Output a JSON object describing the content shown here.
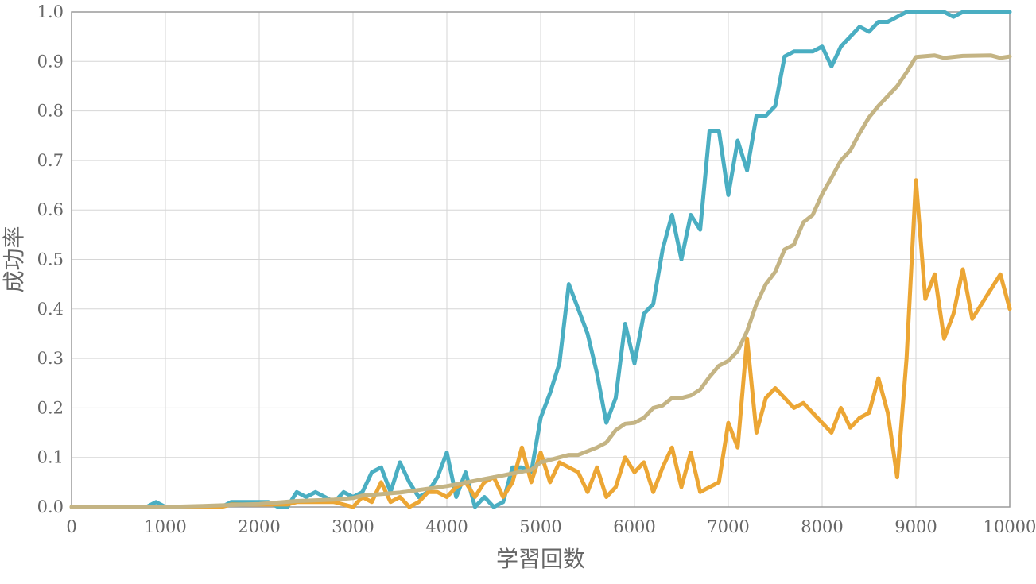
{
  "chart_data": {
    "type": "line",
    "title": "",
    "xlabel": "学習回数",
    "ylabel": "成功率",
    "xlim": [
      0,
      10000
    ],
    "ylim": [
      0,
      1.0
    ],
    "x_ticks": [
      "0",
      "1000",
      "2000",
      "3000",
      "4000",
      "5000",
      "6000",
      "7000",
      "8000",
      "9000",
      "10000"
    ],
    "y_ticks": [
      "0.0",
      "0.1",
      "0.2",
      "0.3",
      "0.4",
      "0.5",
      "0.6",
      "0.7",
      "0.8",
      "0.9",
      "1.0"
    ],
    "grid": true,
    "legend": "none",
    "series": [
      {
        "color": "#4aaec2",
        "points": [
          [
            0,
            0
          ],
          [
            800,
            0
          ],
          [
            900,
            0.01
          ],
          [
            1000,
            0
          ],
          [
            1600,
            0
          ],
          [
            1700,
            0.01
          ],
          [
            2100,
            0.01
          ],
          [
            2200,
            0
          ],
          [
            2300,
            0
          ],
          [
            2400,
            0.03
          ],
          [
            2500,
            0.02
          ],
          [
            2600,
            0.03
          ],
          [
            2700,
            0.02
          ],
          [
            2800,
            0.01
          ],
          [
            2900,
            0.03
          ],
          [
            3000,
            0.02
          ],
          [
            3100,
            0.03
          ],
          [
            3200,
            0.07
          ],
          [
            3300,
            0.08
          ],
          [
            3400,
            0.03
          ],
          [
            3500,
            0.09
          ],
          [
            3600,
            0.05
          ],
          [
            3700,
            0.02
          ],
          [
            3800,
            0.03
          ],
          [
            3900,
            0.06
          ],
          [
            4000,
            0.11
          ],
          [
            4100,
            0.02
          ],
          [
            4200,
            0.07
          ],
          [
            4300,
            0
          ],
          [
            4400,
            0.02
          ],
          [
            4500,
            0
          ],
          [
            4600,
            0.01
          ],
          [
            4700,
            0.08
          ],
          [
            4800,
            0.08
          ],
          [
            4900,
            0.07
          ],
          [
            5000,
            0.18
          ],
          [
            5100,
            0.23
          ],
          [
            5200,
            0.29
          ],
          [
            5300,
            0.45
          ],
          [
            5400,
            0.4
          ],
          [
            5500,
            0.35
          ],
          [
            5600,
            0.27
          ],
          [
            5700,
            0.17
          ],
          [
            5800,
            0.22
          ],
          [
            5900,
            0.37
          ],
          [
            6000,
            0.29
          ],
          [
            6100,
            0.39
          ],
          [
            6200,
            0.41
          ],
          [
            6300,
            0.52
          ],
          [
            6400,
            0.59
          ],
          [
            6500,
            0.5
          ],
          [
            6600,
            0.59
          ],
          [
            6700,
            0.56
          ],
          [
            6800,
            0.76
          ],
          [
            6900,
            0.76
          ],
          [
            7000,
            0.63
          ],
          [
            7100,
            0.74
          ],
          [
            7200,
            0.68
          ],
          [
            7300,
            0.79
          ],
          [
            7400,
            0.79
          ],
          [
            7500,
            0.81
          ],
          [
            7600,
            0.91
          ],
          [
            7700,
            0.92
          ],
          [
            7800,
            0.92
          ],
          [
            7900,
            0.92
          ],
          [
            8000,
            0.93
          ],
          [
            8100,
            0.89
          ],
          [
            8200,
            0.93
          ],
          [
            8300,
            0.95
          ],
          [
            8400,
            0.97
          ],
          [
            8500,
            0.96
          ],
          [
            8600,
            0.98
          ],
          [
            8700,
            0.98
          ],
          [
            8800,
            0.99
          ],
          [
            8900,
            1.0
          ],
          [
            9300,
            1.0
          ],
          [
            9400,
            0.99
          ],
          [
            9500,
            1.0
          ],
          [
            10000,
            1.0
          ]
        ]
      },
      {
        "color": "#eca634",
        "points": [
          [
            0,
            0
          ],
          [
            1600,
            0
          ],
          [
            1700,
            0.005
          ],
          [
            2300,
            0.005
          ],
          [
            2400,
            0.01
          ],
          [
            2800,
            0.01
          ],
          [
            2900,
            0.005
          ],
          [
            3000,
            0
          ],
          [
            3100,
            0.02
          ],
          [
            3200,
            0.01
          ],
          [
            3300,
            0.05
          ],
          [
            3400,
            0.01
          ],
          [
            3500,
            0.02
          ],
          [
            3600,
            0
          ],
          [
            3700,
            0.01
          ],
          [
            3800,
            0.03
          ],
          [
            3900,
            0.03
          ],
          [
            4000,
            0.02
          ],
          [
            4100,
            0.04
          ],
          [
            4200,
            0.05
          ],
          [
            4300,
            0.02
          ],
          [
            4400,
            0.05
          ],
          [
            4500,
            0.06
          ],
          [
            4600,
            0.02
          ],
          [
            4700,
            0.05
          ],
          [
            4800,
            0.12
          ],
          [
            4900,
            0.05
          ],
          [
            5000,
            0.11
          ],
          [
            5100,
            0.05
          ],
          [
            5200,
            0.09
          ],
          [
            5300,
            0.08
          ],
          [
            5400,
            0.07
          ],
          [
            5500,
            0.03
          ],
          [
            5600,
            0.08
          ],
          [
            5700,
            0.02
          ],
          [
            5800,
            0.04
          ],
          [
            5900,
            0.1
          ],
          [
            6000,
            0.07
          ],
          [
            6100,
            0.09
          ],
          [
            6200,
            0.03
          ],
          [
            6300,
            0.08
          ],
          [
            6400,
            0.12
          ],
          [
            6500,
            0.04
          ],
          [
            6600,
            0.11
          ],
          [
            6700,
            0.03
          ],
          [
            6800,
            0.04
          ],
          [
            6900,
            0.05
          ],
          [
            7000,
            0.17
          ],
          [
            7100,
            0.12
          ],
          [
            7200,
            0.34
          ],
          [
            7300,
            0.15
          ],
          [
            7400,
            0.22
          ],
          [
            7500,
            0.24
          ],
          [
            7600,
            0.22
          ],
          [
            7700,
            0.2
          ],
          [
            7800,
            0.21
          ],
          [
            7900,
            0.19
          ],
          [
            8000,
            0.17
          ],
          [
            8100,
            0.15
          ],
          [
            8200,
            0.2
          ],
          [
            8300,
            0.16
          ],
          [
            8400,
            0.18
          ],
          [
            8500,
            0.19
          ],
          [
            8600,
            0.26
          ],
          [
            8700,
            0.19
          ],
          [
            8800,
            0.06
          ],
          [
            8900,
            0.3
          ],
          [
            9000,
            0.66
          ],
          [
            9100,
            0.42
          ],
          [
            9200,
            0.47
          ],
          [
            9300,
            0.34
          ],
          [
            9400,
            0.39
          ],
          [
            9500,
            0.48
          ],
          [
            9600,
            0.38
          ],
          [
            9700,
            0.41
          ],
          [
            9800,
            0.44
          ],
          [
            9900,
            0.47
          ],
          [
            10000,
            0.4
          ]
        ]
      },
      {
        "color": "#c4b484",
        "points": [
          [
            0,
            0
          ],
          [
            1000,
            0
          ],
          [
            1400,
            0.002
          ],
          [
            2000,
            0.006
          ],
          [
            2400,
            0.012
          ],
          [
            2800,
            0.015
          ],
          [
            3000,
            0.018
          ],
          [
            3100,
            0.023
          ],
          [
            3500,
            0.029
          ],
          [
            4000,
            0.042
          ],
          [
            4500,
            0.06
          ],
          [
            4900,
            0.075
          ],
          [
            5000,
            0.09
          ],
          [
            5200,
            0.1
          ],
          [
            5300,
            0.105
          ],
          [
            5400,
            0.105
          ],
          [
            5600,
            0.12
          ],
          [
            5700,
            0.13
          ],
          [
            5800,
            0.155
          ],
          [
            5900,
            0.168
          ],
          [
            6000,
            0.17
          ],
          [
            6100,
            0.18
          ],
          [
            6200,
            0.2
          ],
          [
            6300,
            0.205
          ],
          [
            6400,
            0.22
          ],
          [
            6500,
            0.22
          ],
          [
            6600,
            0.225
          ],
          [
            6700,
            0.237
          ],
          [
            6800,
            0.263
          ],
          [
            6900,
            0.285
          ],
          [
            7000,
            0.295
          ],
          [
            7100,
            0.315
          ],
          [
            7200,
            0.355
          ],
          [
            7300,
            0.41
          ],
          [
            7400,
            0.45
          ],
          [
            7500,
            0.475
          ],
          [
            7600,
            0.52
          ],
          [
            7700,
            0.53
          ],
          [
            7800,
            0.575
          ],
          [
            7900,
            0.59
          ],
          [
            8000,
            0.632
          ],
          [
            8100,
            0.665
          ],
          [
            8200,
            0.7
          ],
          [
            8300,
            0.72
          ],
          [
            8400,
            0.755
          ],
          [
            8500,
            0.787
          ],
          [
            8600,
            0.81
          ],
          [
            8700,
            0.83
          ],
          [
            8800,
            0.85
          ],
          [
            8900,
            0.878
          ],
          [
            9000,
            0.909
          ],
          [
            9200,
            0.912
          ],
          [
            9300,
            0.907
          ],
          [
            9500,
            0.911
          ],
          [
            9800,
            0.912
          ],
          [
            9900,
            0.907
          ],
          [
            10000,
            0.91
          ]
        ]
      }
    ]
  }
}
